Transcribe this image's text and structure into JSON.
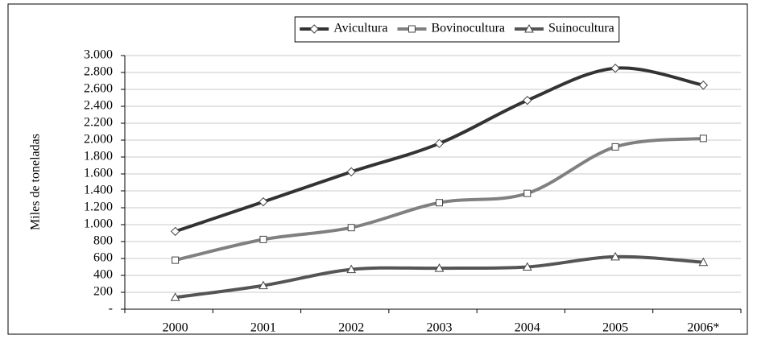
{
  "chart_data": {
    "type": "line",
    "y_label": "Miles de toneladas",
    "categories": [
      "2000",
      "2001",
      "2002",
      "2003",
      "2004",
      "2005",
      "2006*"
    ],
    "series": [
      {
        "name": "Avicultura",
        "color": "#333333",
        "marker": "diamond",
        "values": [
          920,
          1270,
          1625,
          1960,
          2470,
          2850,
          2650
        ]
      },
      {
        "name": "Bovinocultura",
        "color": "#808080",
        "marker": "square",
        "values": [
          580,
          825,
          965,
          1260,
          1370,
          1920,
          2020
        ]
      },
      {
        "name": "Suinocultura",
        "color": "#555555",
        "marker": "triangle",
        "values": [
          140,
          280,
          470,
          485,
          500,
          620,
          555
        ]
      }
    ],
    "ylim": [
      0,
      3000
    ],
    "yticks": [
      {
        "value": 0,
        "label": "-"
      },
      200,
      400,
      600,
      800,
      {
        "value": 1000,
        "label": "1.000"
      },
      {
        "value": 1200,
        "label": "1.200"
      },
      {
        "value": 1400,
        "label": "1.400"
      },
      {
        "value": 1600,
        "label": "1.600"
      },
      {
        "value": 1800,
        "label": "1.800"
      },
      {
        "value": 2000,
        "label": "2.000"
      },
      {
        "value": 2200,
        "label": "2.200"
      },
      {
        "value": 2400,
        "label": "2.400"
      },
      {
        "value": 2600,
        "label": "2.600"
      },
      {
        "value": 2800,
        "label": "2.800"
      },
      {
        "value": 3000,
        "label": "3.000"
      }
    ],
    "grid": true,
    "legend": "top"
  }
}
